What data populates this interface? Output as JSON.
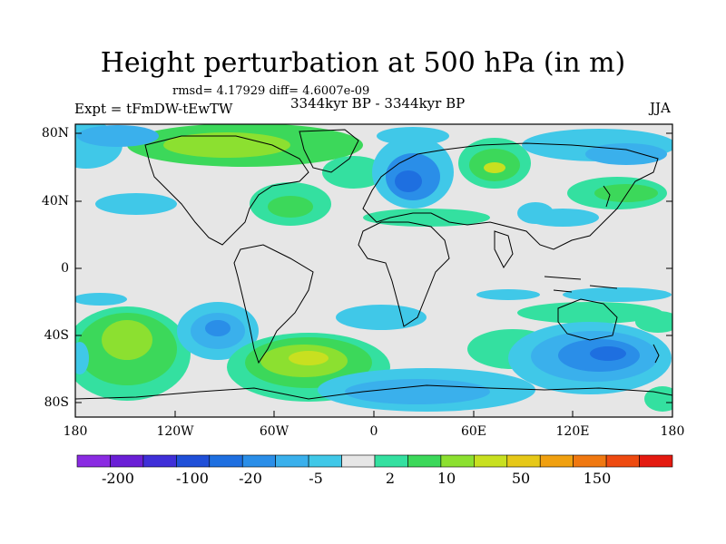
{
  "title": "Height perturbation at 500 hPa (in m)",
  "stats_text": "rmsd= 4.17929 diff= 4.6007e-09",
  "expt_text": "Expt = tFmDW-tEwTW",
  "period_text": "3344kyr BP - 3344kyr BP",
  "season_text": "JJA",
  "lat_labels": [
    "80N",
    "40N",
    "0",
    "40S",
    "80S"
  ],
  "lon_labels": [
    "180",
    "120W",
    "60W",
    "0",
    "60E",
    "120E",
    "180"
  ],
  "colorbar": {
    "colors": [
      "#8a2be2",
      "#6a1fd6",
      "#3f2fd8",
      "#1f4fd8",
      "#1e6fe0",
      "#2a8ee8",
      "#3ab0ec",
      "#40c8e8",
      "#e6e6e6",
      "#34e0a0",
      "#3cd85a",
      "#8ce030",
      "#c8e020",
      "#e6c818",
      "#f0a010",
      "#f07810",
      "#ee4a10",
      "#e41a10"
    ],
    "labels": [
      "-200",
      "-100",
      "-20",
      "-5",
      "2",
      "10",
      "50",
      "150"
    ]
  }
}
